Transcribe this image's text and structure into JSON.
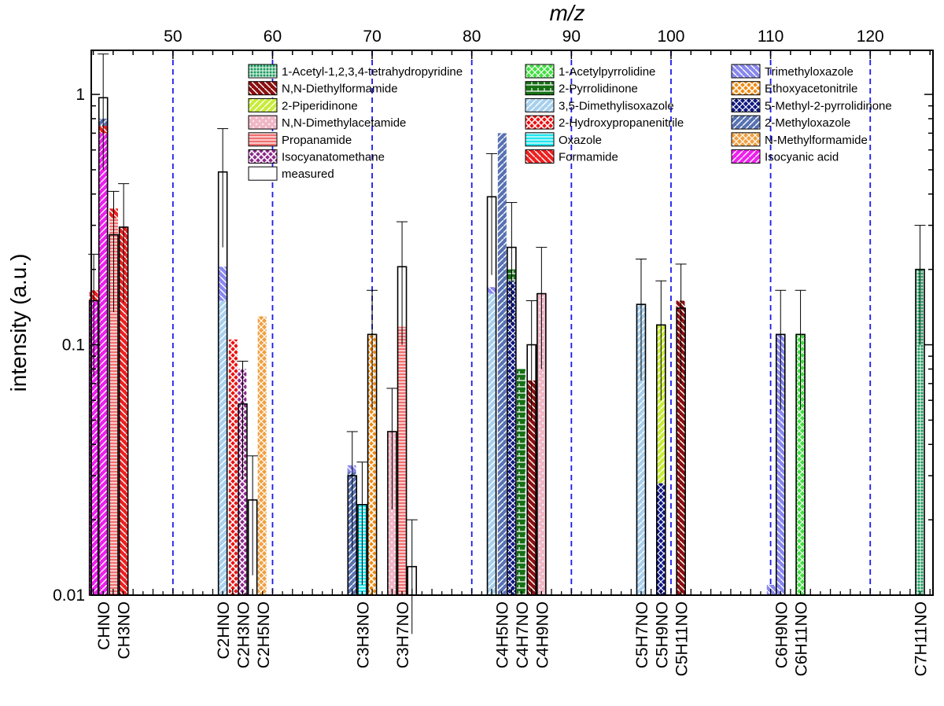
{
  "chart_data": {
    "type": "bar",
    "title": "",
    "xlabel": "m/z",
    "ylabel": "intensity (a.u.)",
    "x_scale": "linear",
    "y_scale": "log",
    "xlim": [
      41.8,
      126.3
    ],
    "ylim": [
      0.01,
      1.5
    ],
    "x_ticks": [
      50,
      60,
      70,
      80,
      90,
      100,
      110,
      120
    ],
    "y_ticks": [
      0.01,
      0.1,
      1
    ],
    "y_tick_labels": [
      "0.01",
      "0.1",
      "1"
    ],
    "decade_separators_mz": [
      50,
      60,
      70,
      80,
      90,
      100,
      110,
      120
    ],
    "categories": [
      {
        "label": "CHNO",
        "mz": 43
      },
      {
        "label": "CH3NO",
        "mz": 45
      },
      {
        "label": "C2HNO",
        "mz": 55
      },
      {
        "label": "C2H3NO",
        "mz": 57
      },
      {
        "label": "C2H5NO",
        "mz": 59
      },
      {
        "label": "C3H3NO",
        "mz": 69
      },
      {
        "label": "C3H7NO",
        "mz": 73
      },
      {
        "label": "C4H5NO",
        "mz": 83
      },
      {
        "label": "C4H7NO",
        "mz": 85
      },
      {
        "label": "C4H9NO",
        "mz": 87
      },
      {
        "label": "C5H7NO",
        "mz": 97
      },
      {
        "label": "C5H9NO",
        "mz": 99
      },
      {
        "label": "C5H11NO",
        "mz": 101
      },
      {
        "label": "C6H9NO",
        "mz": 111
      },
      {
        "label": "C6H11NO",
        "mz": 113
      },
      {
        "label": "C7H11NO",
        "mz": 125
      }
    ],
    "legend": [
      {
        "name": "1-Acetyl-1,2,3,4-tetrahydropyridine",
        "color": "#1a9b5c",
        "pattern": "grid"
      },
      {
        "name": "N,N-Diethylformamide",
        "color": "#8b1010",
        "pattern": "back"
      },
      {
        "name": "2-Piperidinone",
        "color": "#c8ec3a",
        "pattern": "fwd"
      },
      {
        "name": "N,N-Dimethylacetamide",
        "color": "#f0b8c6",
        "pattern": "dots"
      },
      {
        "name": "Propanamide",
        "color": "#f07070",
        "pattern": "horiz"
      },
      {
        "name": "Isocyanatomethane",
        "color": "#8b2a8b",
        "pattern": "cross"
      },
      {
        "name": "measured",
        "color": "#ffffff",
        "pattern": "none"
      },
      {
        "name": "1-Acetylpyrrolidine",
        "color": "#44e044",
        "pattern": "diamond"
      },
      {
        "name": "2-Pyrrolidinone",
        "color": "#157015",
        "pattern": "brick"
      },
      {
        "name": "3,5-Dimethylisoxazole",
        "color": "#a8d0ee",
        "pattern": "fwd"
      },
      {
        "name": "2-Hydroxypropanenitrile",
        "color": "#ee1010",
        "pattern": "cross"
      },
      {
        "name": "Oxazole",
        "color": "#22e6ee",
        "pattern": "horiz"
      },
      {
        "name": "Formamide",
        "color": "#ee2020",
        "pattern": "back"
      },
      {
        "name": "Trimethyloxazole",
        "color": "#8888ee",
        "pattern": "back"
      },
      {
        "name": "Ethoxyacetonitrile",
        "color": "#f08a10",
        "pattern": "cross"
      },
      {
        "name": "5-Methyl-2-pyrrolidinone",
        "color": "#101880",
        "pattern": "diamond"
      },
      {
        "name": "2-Methyloxazole",
        "color": "#5872b2",
        "pattern": "fwd"
      },
      {
        "name": "N-Methylformamide",
        "color": "#f0a040",
        "pattern": "diamond"
      },
      {
        "name": "Isocyanic acid",
        "color": "#ee20ee",
        "pattern": "fwd"
      }
    ],
    "series": [
      {
        "name": "Isocyanic acid",
        "mz": 42.95,
        "segments": [
          {
            "from": 0.01,
            "to": 0.7
          }
        ]
      },
      {
        "name": "Formamide",
        "mz": 42.95,
        "segments": [
          {
            "from": 0.7,
            "to": 0.75
          }
        ]
      },
      {
        "name": "2-Methyloxazole",
        "mz": 42.95,
        "segments": [
          {
            "from": 0.75,
            "to": 0.8
          }
        ]
      },
      {
        "name": "Isocyanic acid",
        "mz": 42.05,
        "segments": [
          {
            "from": 0.01,
            "to": 0.15
          }
        ]
      },
      {
        "name": "Formamide",
        "mz": 42.05,
        "segments": [
          {
            "from": 0.15,
            "to": 0.165
          }
        ]
      },
      {
        "name": "Propanamide",
        "mz": 44.05,
        "segments": [
          {
            "from": 0.01,
            "to": 0.32
          }
        ]
      },
      {
        "name": "Formamide",
        "mz": 44.05,
        "segments": [
          {
            "from": 0.32,
            "to": 0.35
          }
        ]
      },
      {
        "name": "Formamide",
        "mz": 45.05,
        "segments": [
          {
            "from": 0.01,
            "to": 0.295
          }
        ]
      },
      {
        "name": "3,5-Dimethylisoxazole",
        "mz": 54.95,
        "segments": [
          {
            "from": 0.01,
            "to": 0.15
          }
        ]
      },
      {
        "name": "Trimethyloxazole",
        "mz": 54.95,
        "segments": [
          {
            "from": 0.15,
            "to": 0.205
          }
        ]
      },
      {
        "name": "2-Hydroxypropanenitrile",
        "mz": 56.05,
        "segments": [
          {
            "from": 0.01,
            "to": 0.105
          }
        ]
      },
      {
        "name": "Isocyanatomethane",
        "mz": 56.95,
        "segments": [
          {
            "from": 0.01,
            "to": 0.08
          }
        ]
      },
      {
        "name": "N-Methylformamide",
        "mz": 58.95,
        "segments": [
          {
            "from": 0.01,
            "to": 0.13
          }
        ]
      },
      {
        "name": "2-Methyloxazole",
        "mz": 67.95,
        "segments": [
          {
            "from": 0.01,
            "to": 0.031
          }
        ]
      },
      {
        "name": "Trimethyloxazole",
        "mz": 67.95,
        "segments": [
          {
            "from": 0.031,
            "to": 0.033
          }
        ]
      },
      {
        "name": "Oxazole",
        "mz": 69.05,
        "segments": [
          {
            "from": 0.01,
            "to": 0.023
          }
        ]
      },
      {
        "name": "Ethoxyacetonitrile",
        "mz": 70.05,
        "segments": [
          {
            "from": 0.01,
            "to": 0.11
          }
        ]
      },
      {
        "name": "N,N-Dimethylacetamide",
        "mz": 72.05,
        "segments": [
          {
            "from": 0.01,
            "to": 0.045
          }
        ]
      },
      {
        "name": "Propanamide",
        "mz": 72.95,
        "segments": [
          {
            "from": 0.01,
            "to": 0.118
          }
        ]
      },
      {
        "name": "3,5-Dimethylisoxazole",
        "mz": 81.95,
        "segments": [
          {
            "from": 0.01,
            "to": 0.16
          }
        ]
      },
      {
        "name": "Trimethyloxazole",
        "mz": 81.95,
        "segments": [
          {
            "from": 0.16,
            "to": 0.17
          }
        ]
      },
      {
        "name": "2-Methyloxazole",
        "mz": 83.05,
        "segments": [
          {
            "from": 0.01,
            "to": 0.7
          }
        ]
      },
      {
        "name": "5-Methyl-2-pyrrolidinone",
        "mz": 83.95,
        "segments": [
          {
            "from": 0.01,
            "to": 0.18
          }
        ]
      },
      {
        "name": "2-Pyrrolidinone",
        "mz": 83.95,
        "segments": [
          {
            "from": 0.18,
            "to": 0.2
          }
        ]
      },
      {
        "name": "2-Pyrrolidinone",
        "mz": 84.95,
        "segments": [
          {
            "from": 0.01,
            "to": 0.08
          }
        ]
      },
      {
        "name": "N,N-Diethylformamide",
        "mz": 86.05,
        "segments": [
          {
            "from": 0.01,
            "to": 0.072
          }
        ]
      },
      {
        "name": "N,N-Dimethylacetamide",
        "mz": 86.95,
        "segments": [
          {
            "from": 0.01,
            "to": 0.16
          }
        ]
      },
      {
        "name": "3,5-Dimethylisoxazole",
        "mz": 96.95,
        "segments": [
          {
            "from": 0.01,
            "to": 0.145
          }
        ]
      },
      {
        "name": "5-Methyl-2-pyrrolidinone",
        "mz": 98.95,
        "segments": [
          {
            "from": 0.01,
            "to": 0.028
          }
        ]
      },
      {
        "name": "2-Piperidinone",
        "mz": 98.95,
        "segments": [
          {
            "from": 0.028,
            "to": 0.12
          }
        ]
      },
      {
        "name": "N,N-Diethylformamide",
        "mz": 100.95,
        "segments": [
          {
            "from": 0.01,
            "to": 0.15
          }
        ]
      },
      {
        "name": "Trimethyloxazole",
        "mz": 110.05,
        "segments": [
          {
            "from": 0.01,
            "to": 0.011
          }
        ]
      },
      {
        "name": "Trimethyloxazole",
        "mz": 110.95,
        "segments": [
          {
            "from": 0.01,
            "to": 0.11
          }
        ]
      },
      {
        "name": "1-Acetylpyrrolidine",
        "mz": 112.95,
        "segments": [
          {
            "from": 0.01,
            "to": 0.11
          }
        ]
      },
      {
        "name": "1-Acetyl-1,2,3,4-tetrahydropyridine",
        "mz": 124.95,
        "segments": [
          {
            "from": 0.01,
            "to": 0.2
          }
        ]
      }
    ],
    "measured": [
      {
        "mz": 43,
        "value": 0.97,
        "err_low": 0.5,
        "err_high": 1.45
      },
      {
        "mz": 42.05,
        "value": 0.15,
        "err_low": 0.075,
        "err_high": 0.23
      },
      {
        "mz": 44.05,
        "value": 0.275,
        "err_low": 0.135,
        "err_high": 0.41
      },
      {
        "mz": 45.05,
        "value": 0.295,
        "err_low": 0.148,
        "err_high": 0.44
      },
      {
        "mz": 55,
        "value": 0.49,
        "err_low": 0.245,
        "err_high": 0.73
      },
      {
        "mz": 58,
        "value": 0.024,
        "err_low": 0.012,
        "err_high": 0.036
      },
      {
        "mz": 57,
        "value": 0.058,
        "err_low": 0.029,
        "err_high": 0.086
      },
      {
        "mz": 69,
        "value": 0.023,
        "err_low": 0.011,
        "err_high": 0.034
      },
      {
        "mz": 68,
        "value": 0.03,
        "err_low": 0.015,
        "err_high": 0.045
      },
      {
        "mz": 70,
        "value": 0.11,
        "err_low": 0.055,
        "err_high": 0.165
      },
      {
        "mz": 72,
        "value": 0.045,
        "err_low": 0.022,
        "err_high": 0.067
      },
      {
        "mz": 73,
        "value": 0.205,
        "err_low": 0.1,
        "err_high": 0.31
      },
      {
        "mz": 74,
        "value": 0.013,
        "err_low": 0.007,
        "err_high": 0.02
      },
      {
        "mz": 82,
        "value": 0.39,
        "err_low": 0.19,
        "err_high": 0.58
      },
      {
        "mz": 84,
        "value": 0.245,
        "err_low": 0.12,
        "err_high": 0.37
      },
      {
        "mz": 86,
        "value": 0.1,
        "err_low": 0.05,
        "err_high": 0.15
      },
      {
        "mz": 87,
        "value": 0.16,
        "err_low": 0.08,
        "err_high": 0.245
      },
      {
        "mz": 97,
        "value": 0.145,
        "err_low": 0.072,
        "err_high": 0.22
      },
      {
        "mz": 99,
        "value": 0.12,
        "err_low": 0.06,
        "err_high": 0.18
      },
      {
        "mz": 101,
        "value": 0.14,
        "err_low": 0.07,
        "err_high": 0.21
      },
      {
        "mz": 111,
        "value": 0.11,
        "err_low": 0.055,
        "err_high": 0.165
      },
      {
        "mz": 113,
        "value": 0.11,
        "err_low": 0.055,
        "err_high": 0.165
      },
      {
        "mz": 125,
        "value": 0.2,
        "err_low": 0.1,
        "err_high": 0.3
      }
    ]
  }
}
